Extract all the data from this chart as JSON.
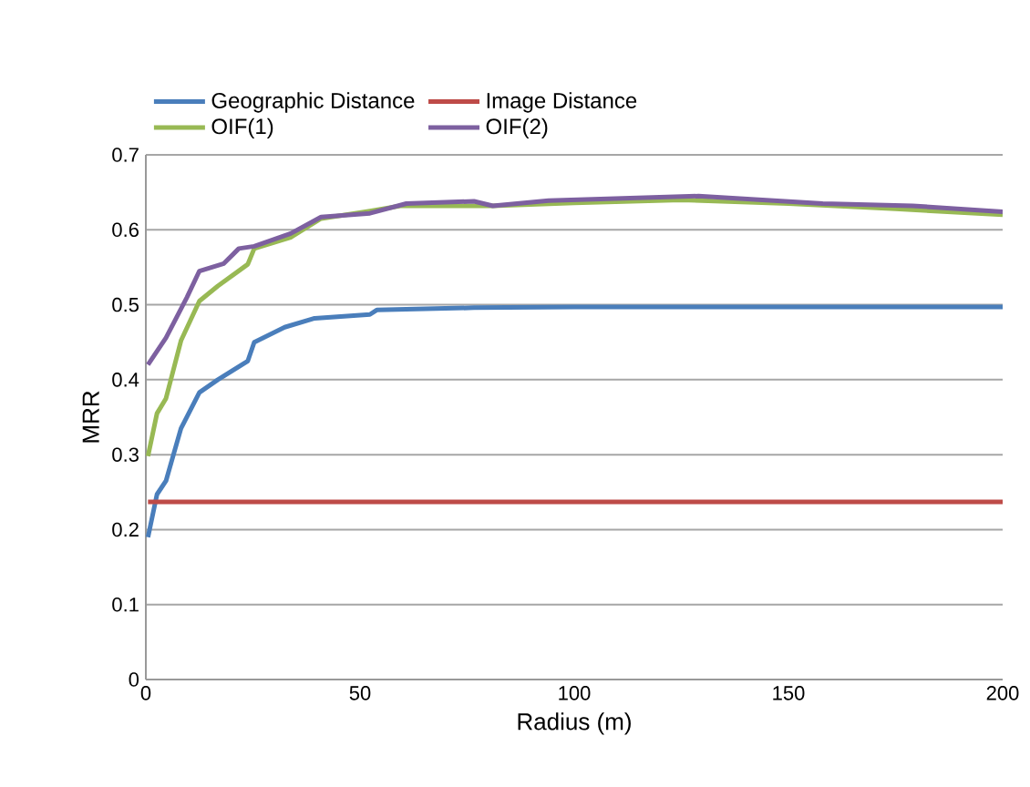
{
  "chart_data": {
    "type": "line",
    "xlabel": "Radius (m)",
    "ylabel": "MRR",
    "xlim": [
      0,
      200
    ],
    "ylim": [
      0,
      0.7
    ],
    "xticks": [
      0,
      50,
      100,
      150,
      200
    ],
    "yticks": [
      0,
      0.1,
      0.2,
      0.3,
      0.4,
      0.5,
      0.6,
      0.7
    ],
    "grid": "y",
    "legend": "top",
    "marker": "none",
    "line_style": "solid",
    "series": [
      {
        "name": "Geographic Distance",
        "color": "#4a7ebb",
        "x": [
          0.5,
          2.6,
          4.7,
          8.2,
          12.5,
          16.8,
          23.8,
          25.3,
          32.4,
          39.4,
          52.3,
          53.9,
          76.6,
          100,
          150,
          200
        ],
        "values": [
          0.19,
          0.247,
          0.265,
          0.335,
          0.383,
          0.4,
          0.425,
          0.45,
          0.47,
          0.482,
          0.487,
          0.493,
          0.496,
          0.497,
          0.497,
          0.497
        ]
      },
      {
        "name": "Image Distance",
        "color": "#be4b48",
        "x": [
          0.5,
          200
        ],
        "values": [
          0.237,
          0.237
        ]
      },
      {
        "name": "OIF(1)",
        "color": "#98b954",
        "x": [
          0.5,
          2.6,
          4.7,
          8.2,
          12.5,
          16.8,
          23.8,
          25.3,
          33.8,
          40.9,
          52.3,
          59.4,
          81,
          100,
          125,
          150,
          175,
          200
        ],
        "values": [
          0.298,
          0.355,
          0.375,
          0.452,
          0.505,
          0.525,
          0.554,
          0.575,
          0.59,
          0.615,
          0.625,
          0.632,
          0.632,
          0.636,
          0.64,
          0.635,
          0.628,
          0.62
        ]
      },
      {
        "name": "OIF(2)",
        "color": "#7d60a0",
        "x": [
          0.5,
          4.7,
          9.6,
          12.5,
          18.2,
          21.7,
          25.3,
          33.8,
          40.9,
          52.3,
          60.8,
          76.6,
          81,
          94,
          129,
          158,
          179,
          200
        ],
        "values": [
          0.42,
          0.456,
          0.51,
          0.545,
          0.555,
          0.575,
          0.578,
          0.595,
          0.617,
          0.622,
          0.635,
          0.638,
          0.632,
          0.639,
          0.645,
          0.635,
          0.632,
          0.624
        ]
      }
    ]
  }
}
